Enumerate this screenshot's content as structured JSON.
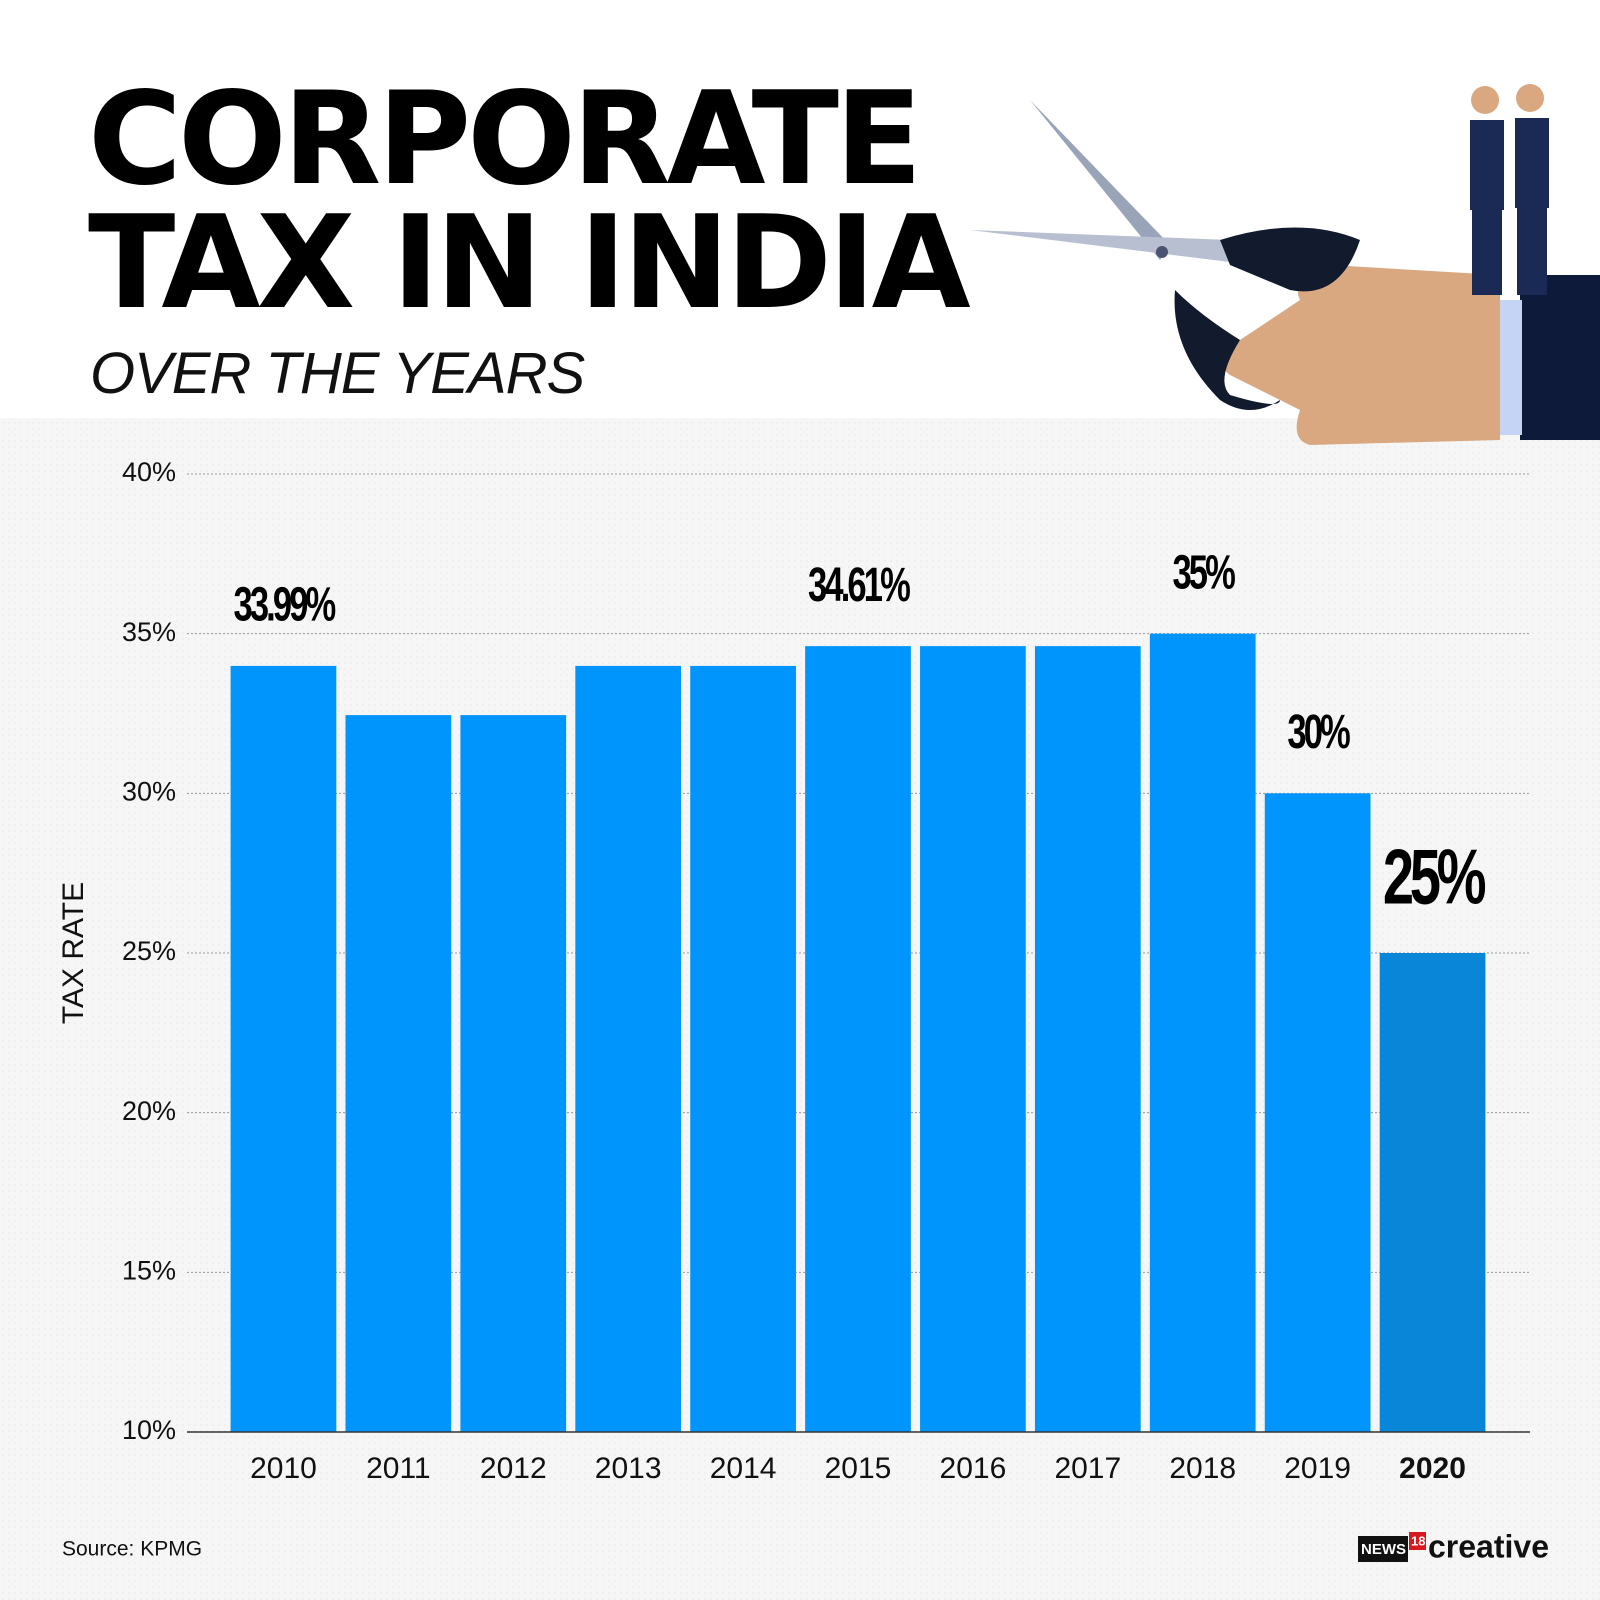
{
  "chart_data": {
    "type": "bar",
    "title": "CORPORATE TAX IN INDIA",
    "subtitle": "OVER THE YEARS",
    "y_label": "TAX RATE",
    "source": "Source: KPMG",
    "categories": [
      "2010",
      "2011",
      "2012",
      "2013",
      "2014",
      "2015",
      "2016",
      "2017",
      "2018",
      "2019",
      "2020"
    ],
    "values": [
      33.99,
      32.45,
      32.45,
      33.99,
      33.99,
      34.61,
      34.61,
      34.61,
      35,
      30,
      25
    ],
    "value_labels": [
      "33.99%",
      null,
      null,
      null,
      null,
      "34.61%",
      null,
      null,
      "35%",
      "30%",
      "25%"
    ],
    "colors": [
      "#0095fc",
      "#0095fc",
      "#0095fc",
      "#0095fc",
      "#0095fc",
      "#0095fc",
      "#0095fc",
      "#0095fc",
      "#0095fc",
      "#0095fc",
      "#0a86d8"
    ],
    "ylim": [
      10,
      40
    ],
    "yticks": [
      {
        "value": 10,
        "label": "10%"
      },
      {
        "value": 15,
        "label": "15%"
      },
      {
        "value": 20,
        "label": "20%"
      },
      {
        "value": 25,
        "label": "25%"
      },
      {
        "value": 30,
        "label": "30%"
      },
      {
        "value": 35,
        "label": "35%"
      },
      {
        "value": 40,
        "label": "40%"
      }
    ],
    "grid": true
  },
  "logo": {
    "news": "NEWS",
    "num": "18",
    "word": "creative"
  }
}
